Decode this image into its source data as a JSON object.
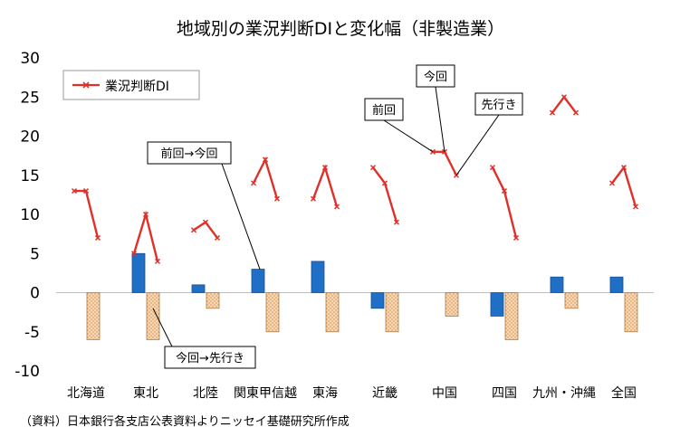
{
  "chart_data": {
    "type": "bar+line",
    "title": "地域別の業況判断DIと変化幅（非製造業）",
    "source": "（資料）日本銀行各支店公表資料よりニッセイ基礎研究所作成",
    "categories": [
      "北海道",
      "東北",
      "北陸",
      "関東甲信越",
      "東海",
      "近畿",
      "中国",
      "四国",
      "九州・沖縄",
      "全国"
    ],
    "ylim": [
      -10,
      30
    ],
    "yticks": [
      -10,
      -5,
      0,
      5,
      10,
      15,
      20,
      25,
      30
    ],
    "grid": false,
    "legend_position": "top-left",
    "line_series": {
      "name": "業況判断DI",
      "color": "#e0302a",
      "points_per_category": [
        "前回",
        "今回",
        "先行き"
      ],
      "values": [
        [
          13,
          13,
          7
        ],
        [
          5,
          10,
          4
        ],
        [
          8,
          9,
          7
        ],
        [
          14,
          17,
          12
        ],
        [
          12,
          16,
          11
        ],
        [
          16,
          14,
          9
        ],
        [
          18,
          18,
          15
        ],
        [
          16,
          13,
          7
        ],
        [
          23,
          25,
          23
        ],
        [
          14,
          16,
          11
        ]
      ]
    },
    "bar_series": [
      {
        "color": "#1f6fc6",
        "values": [
          0,
          5,
          1,
          3,
          4,
          -2,
          0,
          -3,
          2,
          2
        ]
      },
      {
        "color": "#f5c99a",
        "values": [
          -6,
          -6,
          -2,
          -5,
          -5,
          -5,
          -3,
          -6,
          -2,
          -5
        ]
      }
    ],
    "annotations": {
      "prev": "前回",
      "curr": "今回",
      "next": "先行き",
      "prev_to_curr": "前回→今回",
      "curr_to_next": "今回→先行き"
    }
  }
}
